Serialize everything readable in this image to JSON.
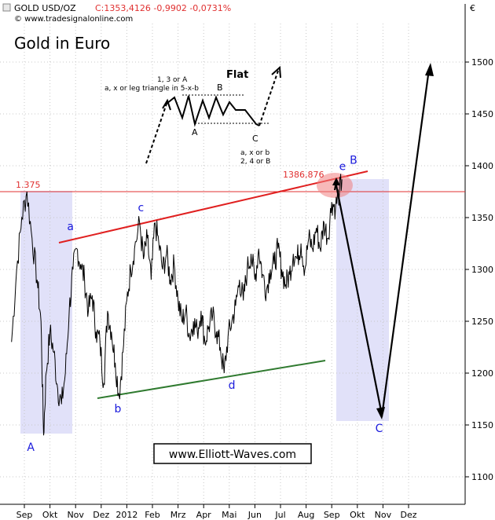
{
  "header": {
    "symbol": "GOLD USD/OZ",
    "quote": "C:1353,4126 -0,9902 -0,0731%",
    "source": "© www.tradesignalonline.com",
    "currency_symbol": "€"
  },
  "chart_data": {
    "type": "line",
    "title": "Gold in Euro",
    "watermark": "www.Elliott-Waves.com",
    "ylim": [
      1080,
      1560
    ],
    "yticks": [
      1100,
      1150,
      1200,
      1250,
      1300,
      1350,
      1400,
      1450,
      1500
    ],
    "xlim": [
      0,
      19.3
    ],
    "xticks": [
      {
        "label": "Sep",
        "x": 0.5
      },
      {
        "label": "Okt",
        "x": 1.5
      },
      {
        "label": "Nov",
        "x": 2.5
      },
      {
        "label": "Dez",
        "x": 3.5
      },
      {
        "label": "2012",
        "x": 4.5
      },
      {
        "label": "Feb",
        "x": 5.5
      },
      {
        "label": "Mrz",
        "x": 6.5
      },
      {
        "label": "Apr",
        "x": 7.5
      },
      {
        "label": "Mai",
        "x": 8.5
      },
      {
        "label": "Jun",
        "x": 9.5
      },
      {
        "label": "Jul",
        "x": 10.5
      },
      {
        "label": "Aug",
        "x": 11.5
      },
      {
        "label": "Sep",
        "x": 12.5
      },
      {
        "label": "Okt",
        "x": 13.5
      },
      {
        "label": "Nov",
        "x": 14.5
      },
      {
        "label": "Dez",
        "x": 15.5
      }
    ],
    "series": [
      {
        "color": "#000000",
        "x": [
          0,
          0.2,
          0.4,
          0.6,
          0.8,
          1.0,
          1.15,
          1.25,
          1.35,
          1.5,
          1.65,
          1.8,
          1.95,
          2.1,
          2.25,
          2.4,
          2.55,
          2.7,
          2.85,
          3.0,
          3.15,
          3.3,
          3.45,
          3.6,
          3.75,
          3.9,
          4.05,
          4.2,
          4.35,
          4.5,
          4.65,
          4.8,
          5.0,
          5.15,
          5.3,
          5.45,
          5.6,
          5.75,
          5.9,
          6.05,
          6.2,
          6.35,
          6.5,
          6.65,
          6.8,
          6.95,
          7.1,
          7.25,
          7.4,
          7.55,
          7.7,
          7.85,
          8.0,
          8.15,
          8.3,
          8.45,
          8.6,
          8.75,
          8.9,
          9.05,
          9.2,
          9.35,
          9.5,
          9.65,
          9.8,
          9.95,
          10.1,
          10.25,
          10.4,
          10.55,
          10.7,
          10.85,
          11.0,
          11.15,
          11.3,
          11.45,
          11.6,
          11.75,
          11.9,
          12.05,
          12.2,
          12.35,
          12.5,
          12.65,
          12.8,
          12.9
        ],
        "y": [
          1230,
          1300,
          1350,
          1375,
          1330,
          1290,
          1250,
          1140,
          1200,
          1240,
          1220,
          1185,
          1170,
          1200,
          1260,
          1300,
          1320,
          1305,
          1290,
          1260,
          1275,
          1240,
          1230,
          1190,
          1260,
          1240,
          1210,
          1178,
          1220,
          1270,
          1300,
          1320,
          1345,
          1310,
          1330,
          1290,
          1345,
          1325,
          1300,
          1315,
          1290,
          1305,
          1270,
          1250,
          1260,
          1235,
          1250,
          1240,
          1260,
          1230,
          1245,
          1255,
          1240,
          1225,
          1200,
          1235,
          1250,
          1265,
          1290,
          1270,
          1300,
          1315,
          1290,
          1320,
          1295,
          1280,
          1300,
          1305,
          1320,
          1300,
          1285,
          1295,
          1315,
          1310,
          1325,
          1300,
          1330,
          1320,
          1340,
          1320,
          1345,
          1330,
          1365,
          1360,
          1375,
          1386.876
        ]
      }
    ],
    "annotations": {
      "h_level_label": "1.375",
      "h_level_value": 1375,
      "peak_label": "1386,876",
      "wave_labels": [
        {
          "text": "A",
          "x": 0.75,
          "y": 1125,
          "color": "#1a1adc"
        },
        {
          "text": "a",
          "x": 2.3,
          "y": 1338,
          "color": "#1a1adc"
        },
        {
          "text": "b",
          "x": 4.15,
          "y": 1162,
          "color": "#1a1adc"
        },
        {
          "text": "c",
          "x": 5.05,
          "y": 1356,
          "color": "#1a1adc"
        },
        {
          "text": "d",
          "x": 8.6,
          "y": 1185,
          "color": "#1a1adc"
        },
        {
          "text": "e",
          "x": 12.92,
          "y": 1396,
          "color": "#1a1adc"
        },
        {
          "text": "B",
          "x": 13.35,
          "y": 1402,
          "color": "#1a1adc"
        },
        {
          "text": "C",
          "x": 14.35,
          "y": 1143,
          "color": "#1a1adc"
        }
      ]
    },
    "inset": {
      "title": "Flat",
      "label_top_line1": "1, 3 or A",
      "label_top_line2": "a, x or leg triangle in 5-x-b",
      "label_B": "B",
      "label_A": "A",
      "label_C": "C",
      "label_bottom_line1": "a, x or b",
      "label_bottom_line2": "2, 4 or B"
    }
  }
}
